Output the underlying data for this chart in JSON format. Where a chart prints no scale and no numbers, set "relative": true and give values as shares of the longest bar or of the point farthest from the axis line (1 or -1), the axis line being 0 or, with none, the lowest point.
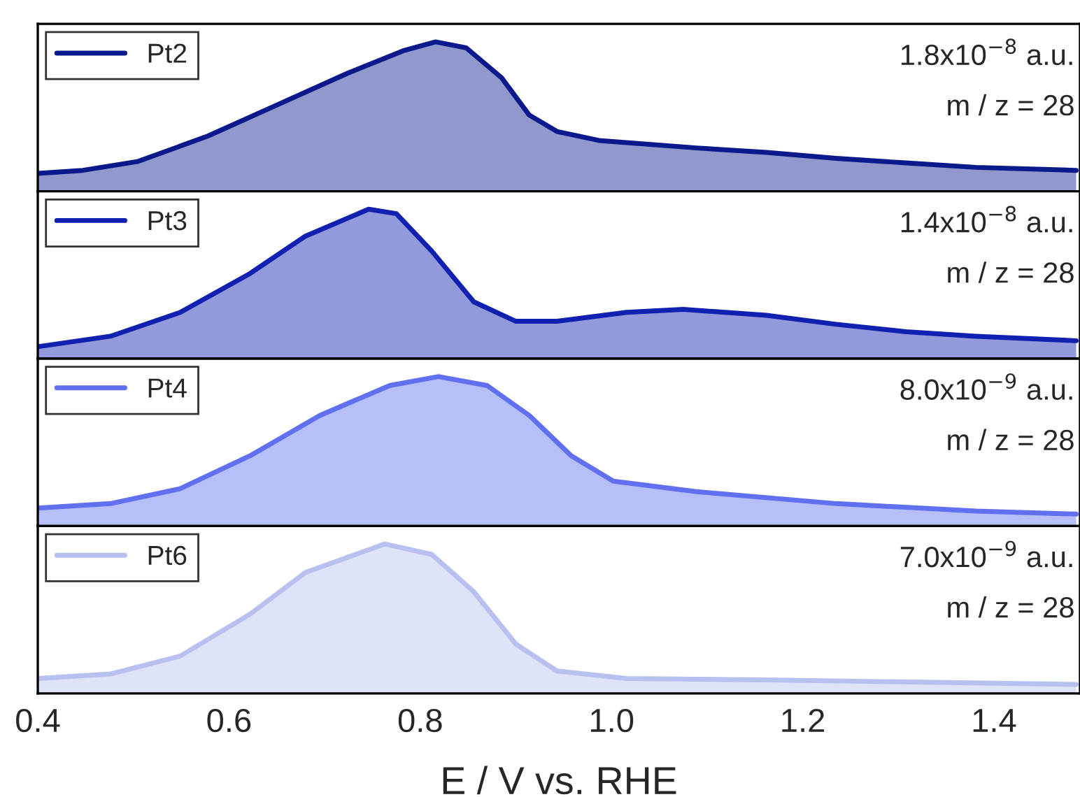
{
  "chart_data": [
    {
      "type": "area",
      "relative": true,
      "x": [
        0.4,
        0.447,
        0.505,
        0.578,
        0.651,
        0.724,
        0.782,
        0.816,
        0.848,
        0.885,
        0.914,
        0.943,
        0.987,
        1.089,
        1.162,
        1.235,
        1.308,
        1.381,
        1.486
      ],
      "xlim": [
        0.4,
        1.49
      ],
      "xticks": [
        0.4,
        0.6,
        0.8,
        1.0,
        1.2,
        1.4
      ],
      "tick_labels": false,
      "legend": "top left",
      "series": [
        {
          "name": "Pt2",
          "color": "#0a1a8c",
          "values": [
            0.12,
            0.14,
            0.2,
            0.37,
            0.58,
            0.79,
            0.94,
            1,
            0.96,
            0.76,
            0.51,
            0.4,
            0.34,
            0.29,
            0.26,
            0.22,
            0.19,
            0.16,
            0.14
          ]
        }
      ],
      "annotations": [
        "1.8x10$^{−8}$ a.u.",
        "m / z = 28"
      ]
    },
    {
      "type": "area",
      "relative": true,
      "x": [
        0.4,
        0.476,
        0.549,
        0.622,
        0.68,
        0.746,
        0.775,
        0.812,
        0.856,
        0.9,
        0.943,
        1.016,
        1.075,
        1.162,
        1.235,
        1.308,
        1.381,
        1.486
      ],
      "xlim": [
        0.4,
        1.49
      ],
      "xticks": [
        0.4,
        0.6,
        0.8,
        1.0,
        1.2,
        1.4
      ],
      "tick_labels": false,
      "legend": "top left",
      "series": [
        {
          "name": "Pt3",
          "color": "#1020b0",
          "values": [
            0.08,
            0.15,
            0.31,
            0.57,
            0.82,
            1,
            0.97,
            0.72,
            0.38,
            0.25,
            0.25,
            0.31,
            0.33,
            0.29,
            0.23,
            0.18,
            0.15,
            0.12
          ]
        }
      ],
      "annotations": [
        "1.4x10$^{−8}$ a.u.",
        "m / z = 28"
      ]
    },
    {
      "type": "area",
      "relative": true,
      "x": [
        0.4,
        0.476,
        0.549,
        0.622,
        0.695,
        0.768,
        0.819,
        0.87,
        0.914,
        0.958,
        1.002,
        1.089,
        1.235,
        1.381,
        1.486
      ],
      "xlim": [
        0.4,
        1.49
      ],
      "xticks": [
        0.4,
        0.6,
        0.8,
        1.0,
        1.2,
        1.4
      ],
      "tick_labels": false,
      "legend": "top left",
      "series": [
        {
          "name": "Pt4",
          "color": "#6070f0",
          "values": [
            0.12,
            0.15,
            0.25,
            0.47,
            0.74,
            0.94,
            1,
            0.94,
            0.74,
            0.47,
            0.3,
            0.23,
            0.15,
            0.1,
            0.08
          ]
        }
      ],
      "annotations": [
        "8.0x10$^{−9}$ a.u.",
        "m / z = 28"
      ]
    },
    {
      "type": "area",
      "relative": true,
      "x": [
        0.4,
        0.476,
        0.549,
        0.622,
        0.68,
        0.763,
        0.812,
        0.856,
        0.9,
        0.943,
        1.016,
        1.162,
        1.486
      ],
      "xlim": [
        0.4,
        1.49
      ],
      "xticks": [
        0.4,
        0.6,
        0.8,
        {
          "value": 1.0,
          "label": "1.0"
        },
        1.2,
        1.4
      ],
      "tick_labels": "x",
      "legend": "top left",
      "xlabel": "E / V vs. RHE",
      "series": [
        {
          "name": "Pt6",
          "color": "#b8c0f0",
          "values": [
            0.1,
            0.13,
            0.25,
            0.53,
            0.81,
            1,
            0.93,
            0.68,
            0.33,
            0.15,
            0.1,
            0.09,
            0.06
          ]
        }
      ],
      "annotations": [
        "7.0x10$^{−9}$ a.u.",
        "m / z = 28"
      ]
    }
  ]
}
